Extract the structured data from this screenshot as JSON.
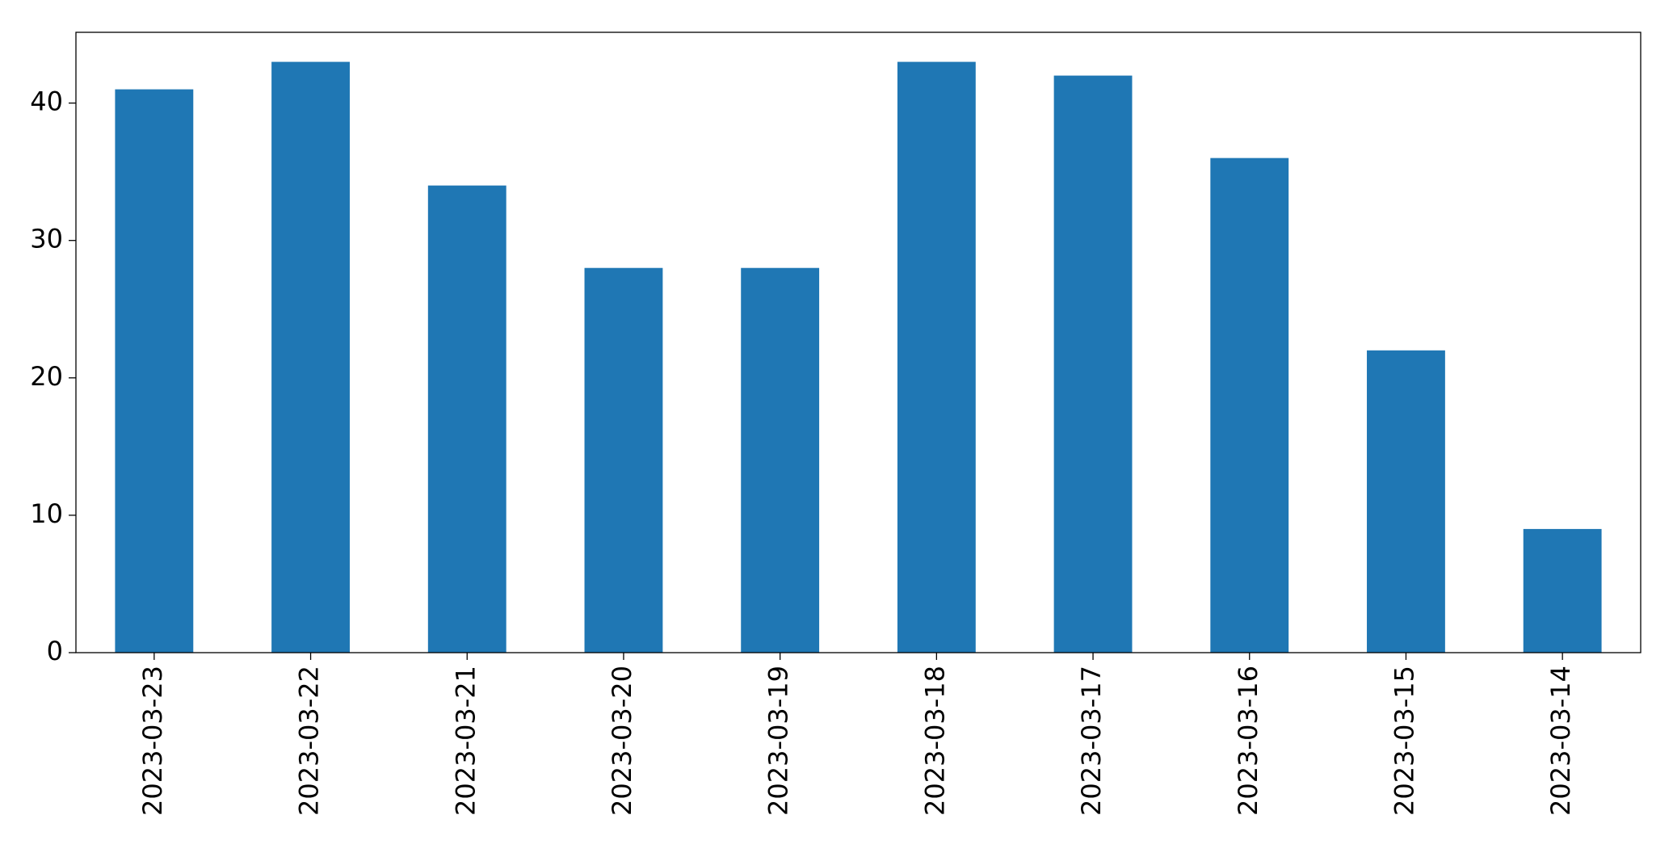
{
  "chart_data": {
    "type": "bar",
    "categories": [
      "2023-03-23",
      "2023-03-22",
      "2023-03-21",
      "2023-03-20",
      "2023-03-19",
      "2023-03-18",
      "2023-03-17",
      "2023-03-16",
      "2023-03-15",
      "2023-03-14"
    ],
    "values": [
      41,
      43,
      34,
      28,
      28,
      43,
      42,
      36,
      22,
      9
    ],
    "color": "#1f77b4",
    "ylim": [
      0,
      45.15
    ],
    "yticks": [
      0,
      10,
      20,
      30,
      40
    ],
    "grid": false
  }
}
